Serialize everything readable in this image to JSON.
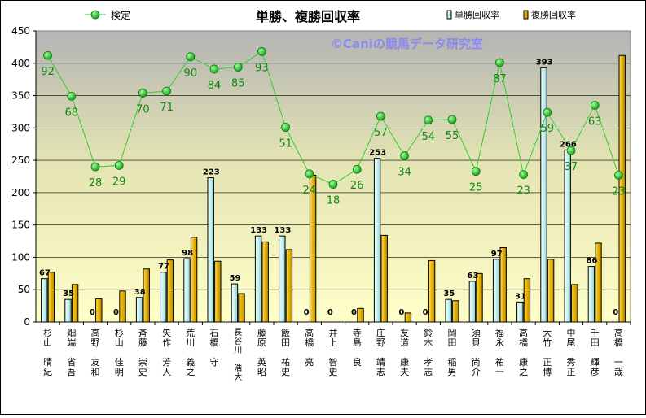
{
  "chart_data": {
    "type": "bar",
    "title": "単勝、複勝回収率",
    "watermark": "©Caniの競馬データ研究室",
    "ylim": [
      0,
      450
    ],
    "yticks": [
      0,
      50,
      100,
      150,
      200,
      250,
      300,
      350,
      400,
      450
    ],
    "grid": true,
    "legend": [
      {
        "name": "検定",
        "placement": "top-left",
        "color": "#22bb22"
      },
      {
        "name": "単勝回収率",
        "placement": "top-right",
        "color": "#c8f4f4"
      },
      {
        "name": "複勝回収率",
        "placement": "top-right",
        "color": "#e0b000"
      }
    ],
    "categories": [
      "杉山 晴紀",
      "畑端 省吾",
      "高野 友和",
      "杉山 佳明",
      "斉藤 崇史",
      "矢作 芳人",
      "荒川 義之",
      "石橋 守",
      "長谷川 浩大",
      "藤原 英昭",
      "飯田 祐史",
      "高橋 亮",
      "井上 智史",
      "寺島 良",
      "庄野 靖志",
      "友道 康夫",
      "鈴木 孝志",
      "岡田 稲男",
      "須貝 尚介",
      "福永 祐一",
      "高橋 康之",
      "大竹 正博",
      "中尾 秀正",
      "千田 輝彦",
      "高橋 一哉"
    ],
    "series": [
      {
        "name": "単勝回収率",
        "type": "bar",
        "color": "#c8f4f4",
        "values": [
          67,
          35,
          0,
          0,
          38,
          77,
          98,
          223,
          59,
          133,
          133,
          0,
          0,
          0,
          253,
          0,
          0,
          35,
          63,
          97,
          31,
          393,
          266,
          86,
          0
        ],
        "labels": [
          "67",
          "35",
          "0",
          "0",
          "38",
          "77",
          "98",
          "223",
          "59",
          "133",
          "133",
          "0",
          "0",
          "0",
          "253",
          "0",
          "0",
          "35",
          "63",
          "97",
          "31",
          "393",
          "266",
          "86",
          "0"
        ]
      },
      {
        "name": "複勝回収率",
        "type": "bar",
        "color": "#e0b000",
        "values": [
          77,
          58,
          36,
          48,
          82,
          96,
          131,
          94,
          44,
          124,
          112,
          227,
          0,
          21,
          134,
          14,
          95,
          33,
          75,
          115,
          67,
          97,
          58,
          122,
          412
        ]
      },
      {
        "name": "検定",
        "type": "line",
        "color": "#22bb22",
        "values": [
          412,
          349,
          240,
          242,
          354,
          357,
          410,
          391,
          394,
          418,
          301,
          229,
          213,
          236,
          318,
          257,
          312,
          313,
          233,
          401,
          228,
          324,
          265,
          335,
          227
        ],
        "labels": [
          "92",
          "68",
          "28",
          "29",
          "70",
          "71",
          "90",
          "84",
          "85",
          "93",
          "51",
          "24",
          "18",
          "26",
          "57",
          "34",
          "54",
          "55",
          "25",
          "87",
          "23",
          "59",
          "37",
          "63",
          "23"
        ]
      }
    ]
  }
}
